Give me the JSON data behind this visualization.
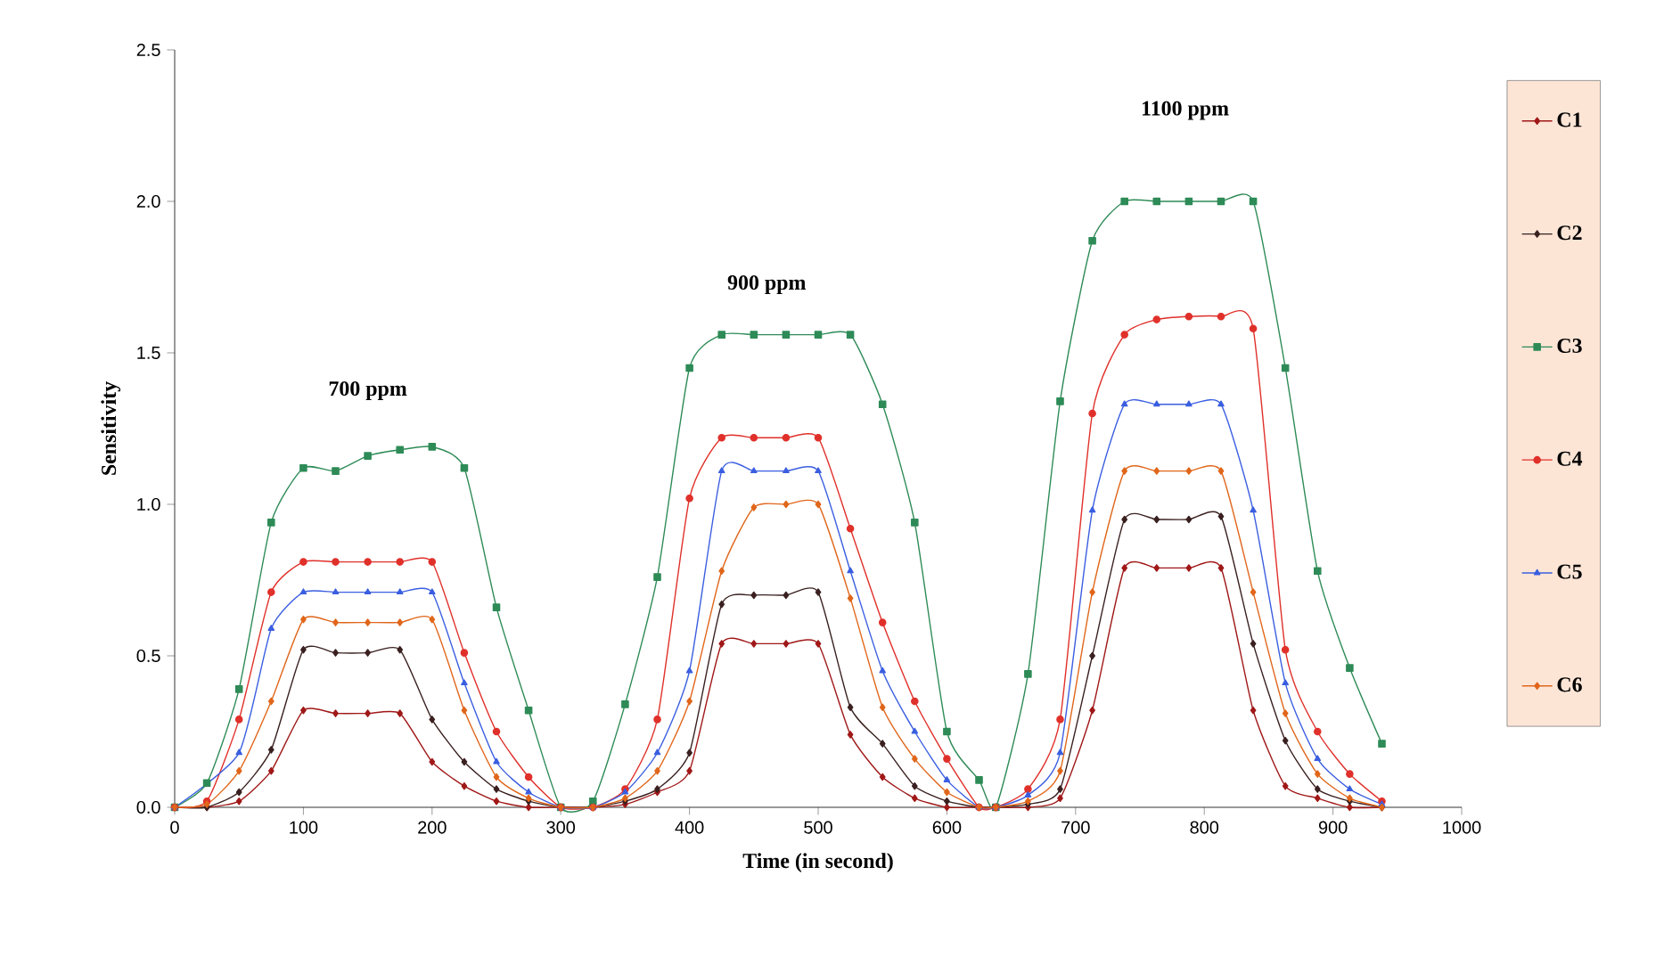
{
  "chart_data": {
    "type": "line",
    "xlabel": "Time (in second)",
    "ylabel": "Sensitivity",
    "x": [
      0,
      25,
      50,
      75,
      100,
      125,
      150,
      175,
      200,
      225,
      250,
      275,
      300,
      325,
      350,
      375,
      400,
      425,
      450,
      475,
      500,
      525,
      550,
      575,
      600,
      625,
      638,
      663,
      688,
      713,
      738,
      763,
      788,
      813,
      838,
      863,
      888,
      913,
      938
    ],
    "series": [
      {
        "name": "C1",
        "color": "#a01818",
        "marker": "diamond",
        "values": [
          0,
          0,
          0.02,
          0.12,
          0.32,
          0.31,
          0.31,
          0.31,
          0.15,
          0.07,
          0.02,
          0,
          0,
          0,
          0.01,
          0.05,
          0.12,
          0.54,
          0.54,
          0.54,
          0.54,
          0.24,
          0.1,
          0.03,
          0,
          0,
          0,
          0,
          0.03,
          0.32,
          0.79,
          0.79,
          0.79,
          0.79,
          0.32,
          0.07,
          0.03,
          0,
          0
        ]
      },
      {
        "name": "C2",
        "color": "#3a2020",
        "marker": "diamond",
        "values": [
          0,
          0,
          0.05,
          0.19,
          0.52,
          0.51,
          0.51,
          0.52,
          0.29,
          0.15,
          0.06,
          0.02,
          0,
          0,
          0.02,
          0.06,
          0.18,
          0.67,
          0.7,
          0.7,
          0.71,
          0.33,
          0.21,
          0.07,
          0.02,
          0,
          0,
          0.01,
          0.06,
          0.5,
          0.95,
          0.95,
          0.95,
          0.96,
          0.54,
          0.22,
          0.06,
          0.02,
          0
        ]
      },
      {
        "name": "C3",
        "color": "#2e8b57",
        "marker": "square",
        "values": [
          0,
          0.08,
          0.39,
          0.94,
          1.12,
          1.11,
          1.16,
          1.18,
          1.19,
          1.12,
          0.66,
          0.32,
          0,
          0.02,
          0.34,
          0.76,
          1.45,
          1.56,
          1.56,
          1.56,
          1.56,
          1.56,
          1.33,
          0.94,
          0.25,
          0.09,
          0,
          0.44,
          1.34,
          1.87,
          2.0,
          2.0,
          2.0,
          2.0,
          2.0,
          1.45,
          0.78,
          0.46,
          0.21
        ]
      },
      {
        "name": "C4",
        "color": "#e0302a",
        "marker": "circle",
        "values": [
          0,
          0.02,
          0.29,
          0.71,
          0.81,
          0.81,
          0.81,
          0.81,
          0.81,
          0.51,
          0.25,
          0.1,
          0,
          0,
          0.06,
          0.29,
          1.02,
          1.22,
          1.22,
          1.22,
          1.22,
          0.92,
          0.61,
          0.35,
          0.16,
          0,
          0,
          0.06,
          0.29,
          1.3,
          1.56,
          1.61,
          1.62,
          1.62,
          1.58,
          0.52,
          0.25,
          0.11,
          0.02
        ]
      },
      {
        "name": "C5",
        "color": "#3a5ee0",
        "marker": "triangle",
        "values": [
          0,
          null,
          0.18,
          0.59,
          0.71,
          0.71,
          0.71,
          0.71,
          0.71,
          0.41,
          0.15,
          0.05,
          0,
          0,
          0.05,
          0.18,
          0.45,
          1.11,
          1.11,
          1.11,
          1.11,
          0.78,
          0.45,
          0.25,
          0.09,
          0,
          0,
          0.04,
          0.18,
          0.98,
          1.33,
          1.33,
          1.33,
          1.33,
          0.98,
          0.41,
          0.16,
          0.06,
          0.01
        ]
      },
      {
        "name": "C6",
        "color": "#e0661a",
        "marker": "diamond",
        "values": [
          0,
          0.01,
          0.12,
          0.35,
          0.62,
          0.61,
          0.61,
          0.61,
          0.62,
          0.32,
          0.1,
          0.03,
          0,
          0,
          0.03,
          0.12,
          0.35,
          0.78,
          0.99,
          1.0,
          1.0,
          0.69,
          0.33,
          0.16,
          0.05,
          0,
          0,
          0.02,
          0.12,
          0.71,
          1.11,
          1.11,
          1.11,
          1.11,
          0.71,
          0.31,
          0.11,
          0.03,
          0
        ]
      }
    ],
    "xlim": [
      0,
      1000
    ],
    "xticks": [
      0,
      100,
      200,
      300,
      400,
      500,
      600,
      700,
      800,
      900,
      1000
    ],
    "ylim": [
      0,
      2.5
    ],
    "yticks": [
      {
        "value": 0,
        "label": "0.0"
      },
      {
        "value": 0.5,
        "label": "0.5"
      },
      {
        "value": 1,
        "label": "1.0"
      },
      {
        "value": 1.5,
        "label": "1.5"
      },
      {
        "value": 2,
        "label": "2.0"
      },
      {
        "value": 2.5,
        "label": "2.5"
      }
    ],
    "annotations": [
      "700 ppm",
      "900 ppm",
      "1100 ppm"
    ],
    "legend": "right",
    "grid": false,
    "line_style": "solid"
  }
}
